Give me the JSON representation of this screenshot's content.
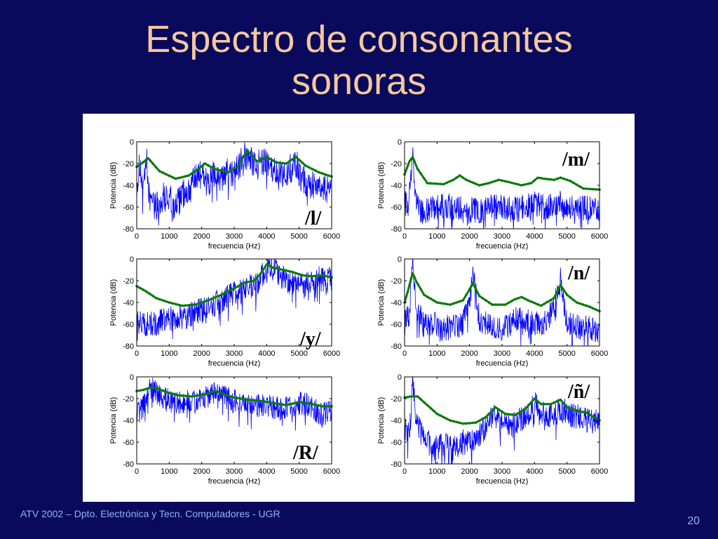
{
  "slide": {
    "title_line1": "Espectro de consonantes",
    "title_line2": "sonoras",
    "footer": "ATV 2002 – Dpto. Electrónica y Tecn. Computadores - UGR",
    "page_number": "20"
  },
  "colors": {
    "background": "#0a0a5c",
    "title": "#f4c89e",
    "footer": "#8fb0ff",
    "spectrum": "#0000ff",
    "envelope": "#0b7a0b"
  },
  "chart_data": [
    {
      "type": "line",
      "label": "/l/",
      "xlabel": "frecuencia (Hz)",
      "ylabel": "Potencia (dB)",
      "xlim": [
        0,
        6000
      ],
      "ylim": [
        -80,
        0
      ],
      "xticks": [
        0,
        1000,
        2000,
        3000,
        4000,
        5000,
        6000
      ],
      "yticks": [
        0,
        -20,
        -40,
        -60,
        -80
      ],
      "envelope": {
        "x": [
          0,
          150,
          350,
          700,
          1200,
          1600,
          1900,
          2100,
          2400,
          2800,
          3100,
          3400,
          3700,
          4000,
          4300,
          4600,
          4900,
          5200,
          5600,
          6000
        ],
        "y": [
          -23,
          -20,
          -15,
          -27,
          -34,
          -31,
          -25,
          -20,
          -25,
          -28,
          -23,
          -8,
          -18,
          -14,
          -19,
          -20,
          -14,
          -22,
          -28,
          -32
        ]
      },
      "spectrum": {
        "x": [
          0,
          100,
          200,
          300,
          400,
          500,
          600,
          800,
          1000,
          1200,
          1400,
          1600,
          1800,
          2000,
          2200,
          2400,
          2600,
          2800,
          3000,
          3200,
          3350,
          3500,
          3700,
          3900,
          4100,
          4300,
          4500,
          4700,
          4900,
          5100,
          5300,
          5500,
          5700,
          6000
        ],
        "y": [
          -40,
          -20,
          -50,
          -15,
          -55,
          -45,
          -60,
          -50,
          -52,
          -60,
          -48,
          -45,
          -35,
          -28,
          -40,
          -30,
          -36,
          -28,
          -30,
          -20,
          -3,
          -15,
          -22,
          -18,
          -25,
          -30,
          -32,
          -25,
          -20,
          -35,
          -38,
          -40,
          -42,
          -45
        ],
        "spread": 14
      }
    },
    {
      "type": "line",
      "label": "/m/",
      "xlabel": "frecuencia (Hz)",
      "ylabel": "Potencia (dB)",
      "xlim": [
        0,
        6000
      ],
      "ylim": [
        -80,
        0
      ],
      "xticks": [
        0,
        1000,
        2000,
        3000,
        4000,
        5000,
        6000
      ],
      "yticks": [
        0,
        -20,
        -40,
        -60,
        -80
      ],
      "envelope": {
        "x": [
          0,
          150,
          250,
          400,
          700,
          1200,
          1500,
          1700,
          1900,
          2300,
          2600,
          2900,
          3200,
          3600,
          3900,
          4100,
          4300,
          4600,
          4800,
          5100,
          5500,
          6000
        ],
        "y": [
          -30,
          -18,
          -14,
          -25,
          -38,
          -39,
          -35,
          -31,
          -35,
          -40,
          -38,
          -35,
          -37,
          -40,
          -38,
          -33,
          -34,
          -35,
          -33,
          -36,
          -43,
          -44
        ]
      },
      "spectrum": {
        "x": [
          0,
          100,
          200,
          250,
          300,
          500,
          800,
          1000,
          1300,
          1500,
          1700,
          2000,
          2300,
          2600,
          2900,
          3200,
          3500,
          3800,
          4000,
          4200,
          4500,
          4800,
          5100,
          5400,
          5700,
          6000
        ],
        "y": [
          -55,
          -60,
          -30,
          -12,
          -40,
          -65,
          -62,
          -60,
          -58,
          -62,
          -60,
          -62,
          -64,
          -58,
          -60,
          -62,
          -62,
          -58,
          -55,
          -60,
          -60,
          -56,
          -62,
          -60,
          -62,
          -64
        ],
        "spread": 12
      }
    },
    {
      "type": "line",
      "label": "/y/",
      "xlabel": "frecuencia (Hz)",
      "ylabel": "Potencia (dB)",
      "xlim": [
        0,
        6000
      ],
      "ylim": [
        -80,
        0
      ],
      "xticks": [
        0,
        1000,
        2000,
        3000,
        4000,
        5000,
        6000
      ],
      "yticks": [
        0,
        -20,
        -40,
        -60,
        -80
      ],
      "envelope": {
        "x": [
          0,
          300,
          600,
          1000,
          1400,
          1800,
          2200,
          2600,
          3000,
          3300,
          3600,
          3800,
          4000,
          4200,
          4500,
          4800,
          5100,
          5400,
          5700,
          6000
        ],
        "y": [
          -25,
          -30,
          -36,
          -40,
          -43,
          -42,
          -38,
          -33,
          -27,
          -22,
          -20,
          -14,
          -5,
          -8,
          -10,
          -12,
          -15,
          -16,
          -15,
          -17
        ]
      },
      "spectrum": {
        "x": [
          0,
          200,
          400,
          700,
          1000,
          1300,
          1600,
          1900,
          2200,
          2500,
          2800,
          3100,
          3400,
          3700,
          3900,
          4100,
          4300,
          4600,
          4900,
          5200,
          5500,
          5800,
          6000
        ],
        "y": [
          -60,
          -58,
          -60,
          -58,
          -55,
          -54,
          -52,
          -48,
          -43,
          -40,
          -35,
          -30,
          -26,
          -22,
          -12,
          -5,
          -12,
          -20,
          -22,
          -25,
          -18,
          -20,
          -18
        ],
        "spread": 12
      }
    },
    {
      "type": "line",
      "label": "/n/",
      "xlabel": "frecuencia (Hz)",
      "ylabel": "Potencia (dB)",
      "xlim": [
        0,
        6000
      ],
      "ylim": [
        -80,
        0
      ],
      "xticks": [
        0,
        1000,
        2000,
        3000,
        4000,
        5000,
        6000
      ],
      "yticks": [
        0,
        -20,
        -40,
        -60,
        -80
      ],
      "envelope": {
        "x": [
          0,
          100,
          200,
          250,
          350,
          600,
          1000,
          1400,
          1800,
          2000,
          2100,
          2300,
          2700,
          3100,
          3400,
          3600,
          3800,
          4200,
          4600,
          4800,
          5000,
          5300,
          5700,
          6000
        ],
        "y": [
          -40,
          -30,
          -18,
          -13,
          -20,
          -33,
          -40,
          -42,
          -38,
          -28,
          -22,
          -34,
          -42,
          -42,
          -37,
          -35,
          -38,
          -43,
          -36,
          -24,
          -33,
          -40,
          -44,
          -48
        ]
      },
      "spectrum": {
        "x": [
          0,
          150,
          250,
          350,
          600,
          900,
          1200,
          1500,
          1800,
          2050,
          2100,
          2300,
          2600,
          2900,
          3200,
          3500,
          3800,
          4100,
          4400,
          4700,
          4800,
          5000,
          5300,
          5600,
          6000
        ],
        "y": [
          -60,
          -50,
          -5,
          -45,
          -62,
          -60,
          -64,
          -62,
          -60,
          -30,
          -12,
          -55,
          -62,
          -65,
          -60,
          -55,
          -58,
          -60,
          -56,
          -35,
          -20,
          -58,
          -62,
          -64,
          -66
        ],
        "spread": 12
      }
    },
    {
      "type": "line",
      "label": "/R/",
      "xlabel": "frecuencia (Hz)",
      "ylabel": "Potencia (dB)",
      "xlim": [
        0,
        6000
      ],
      "ylim": [
        -80,
        0
      ],
      "xticks": [
        0,
        1000,
        2000,
        3000,
        4000,
        5000,
        6000
      ],
      "yticks": [
        0,
        -20,
        -40,
        -60,
        -80
      ],
      "envelope": {
        "x": [
          0,
          200,
          400,
          600,
          900,
          1300,
          1700,
          2100,
          2400,
          2700,
          3000,
          3400,
          3800,
          4200,
          4600,
          5000,
          5400,
          5700,
          6000
        ],
        "y": [
          -13,
          -12,
          -10,
          -10,
          -14,
          -17,
          -18,
          -16,
          -13,
          -16,
          -19,
          -21,
          -22,
          -24,
          -26,
          -23,
          -25,
          -27,
          -27
        ]
      },
      "spectrum": {
        "x": [
          0,
          150,
          300,
          450,
          600,
          900,
          1200,
          1500,
          1800,
          2100,
          2400,
          2700,
          3000,
          3300,
          3600,
          3900,
          4200,
          4500,
          4800,
          5100,
          5400,
          5700,
          6000
        ],
        "y": [
          -35,
          -30,
          -20,
          -8,
          -15,
          -20,
          -25,
          -22,
          -24,
          -20,
          -16,
          -18,
          -22,
          -25,
          -28,
          -26,
          -28,
          -30,
          -26,
          -24,
          -28,
          -35,
          -30
        ],
        "spread": 11
      }
    },
    {
      "type": "line",
      "label": "/ñ/",
      "xlabel": "frecuencia (Hz)",
      "ylabel": "Potencia (dB)",
      "xlim": [
        0,
        6000
      ],
      "ylim": [
        -80,
        0
      ],
      "xticks": [
        0,
        1000,
        2000,
        3000,
        4000,
        5000,
        6000
      ],
      "yticks": [
        0,
        -20,
        -40,
        -60,
        -80
      ],
      "envelope": {
        "x": [
          0,
          200,
          400,
          700,
          1000,
          1400,
          1800,
          2200,
          2500,
          2800,
          3100,
          3400,
          3700,
          4000,
          4200,
          4500,
          4800,
          5000,
          5300,
          5600,
          6000
        ],
        "y": [
          -19,
          -18,
          -18,
          -26,
          -34,
          -40,
          -43,
          -42,
          -37,
          -28,
          -34,
          -35,
          -30,
          -20,
          -25,
          -25,
          -21,
          -28,
          -31,
          -33,
          -40
        ]
      },
      "spectrum": {
        "x": [
          0,
          150,
          250,
          350,
          600,
          900,
          1200,
          1500,
          1800,
          2100,
          2400,
          2700,
          3000,
          3300,
          3600,
          3900,
          4000,
          4200,
          4500,
          4800,
          5100,
          5400,
          5700,
          6000
        ],
        "y": [
          -45,
          -55,
          -5,
          -40,
          -58,
          -65,
          -62,
          -66,
          -60,
          -58,
          -50,
          -35,
          -42,
          -45,
          -38,
          -30,
          -22,
          -32,
          -35,
          -30,
          -34,
          -38,
          -40,
          -42
        ],
        "spread": 12
      }
    }
  ]
}
